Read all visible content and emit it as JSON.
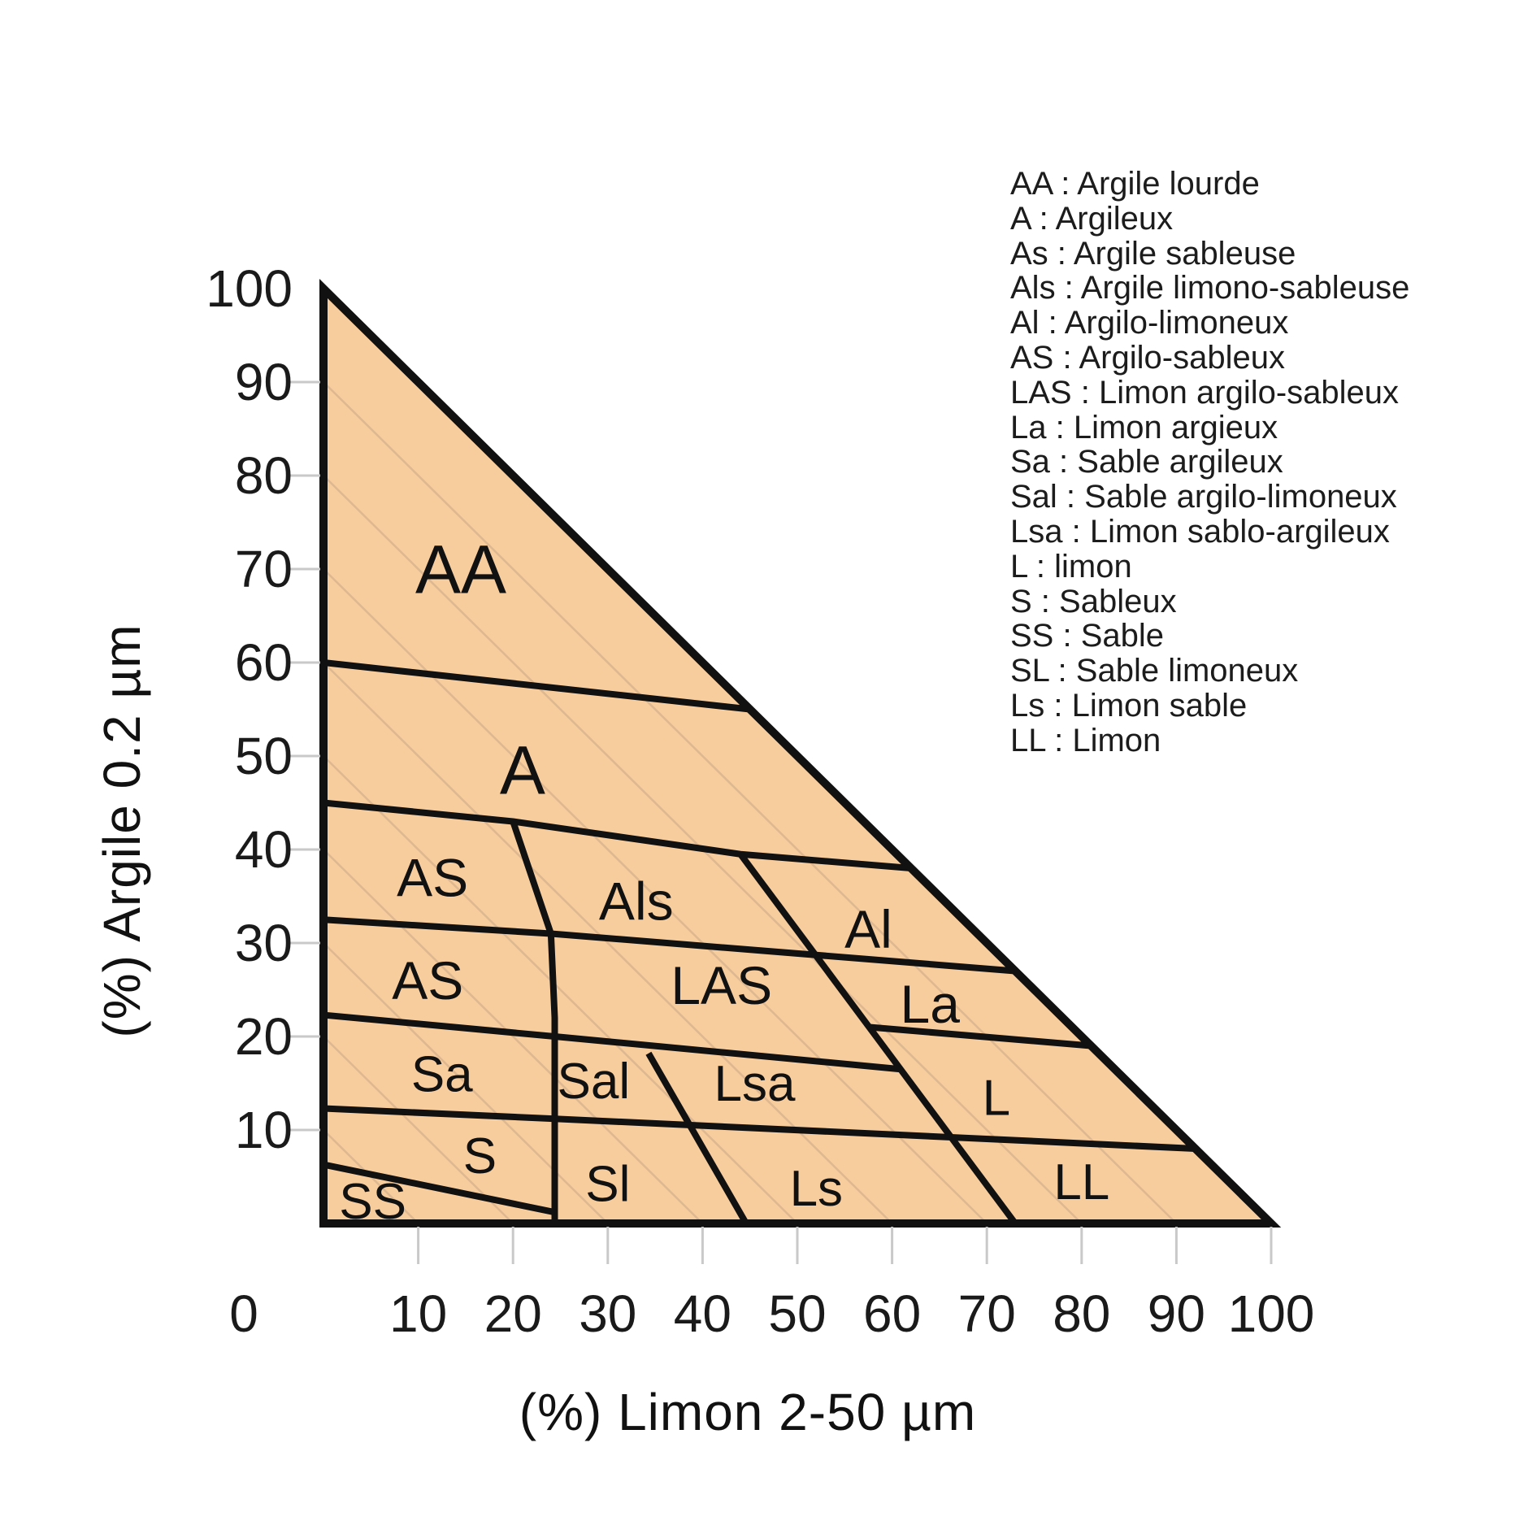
{
  "colors": {
    "region_fill": "#F8CD9E",
    "hatch": "#D9B58E",
    "line": "#111111",
    "tick": "#C9C9C9",
    "text": "#1A1A1A",
    "background": "#FFFFFF"
  },
  "legend": {
    "items": [
      {
        "code": "AA",
        "label": "Argile lourde"
      },
      {
        "code": "A",
        "label": "Argileux"
      },
      {
        "code": "As",
        "label": "Argile sableuse"
      },
      {
        "code": "Als",
        "label": "Argile limono-sableuse"
      },
      {
        "code": "Al",
        "label": "Argilo-limoneux"
      },
      {
        "code": "AS",
        "label": "Argilo-sableux"
      },
      {
        "code": "LAS",
        "label": "Limon argilo-sableux"
      },
      {
        "code": "La",
        "label": "Limon argieux"
      },
      {
        "code": "Sa",
        "label": "Sable argileux"
      },
      {
        "code": "Sal",
        "label": "Sable argilo-limoneux"
      },
      {
        "code": "Lsa",
        "label": "Limon sablo-argileux"
      },
      {
        "code": "L",
        "label": "limon"
      },
      {
        "code": "S",
        "label": "Sableux"
      },
      {
        "code": "SS",
        "label": "Sable"
      },
      {
        "code": "SL",
        "label": "Sable limoneux"
      },
      {
        "code": "Ls",
        "label": "Limon sable"
      },
      {
        "code": "LL",
        "label": "Limon"
      }
    ]
  },
  "chart_data": {
    "type": "area",
    "subtype": "soil-texture-triangle",
    "title": "",
    "xlabel": "(%) Limon 2-50 µm",
    "ylabel": "(%) Argile 0.2 µm",
    "xlim": [
      0,
      100
    ],
    "ylim": [
      0,
      100
    ],
    "grid": false,
    "legend_position": "right",
    "triangle_vertices": [
      [
        0,
        0
      ],
      [
        0,
        100
      ],
      [
        100,
        0
      ]
    ],
    "hatch_lines_sum_values": [
      10,
      20,
      30,
      40,
      50,
      60,
      70,
      80,
      90
    ],
    "x_axis": {
      "labels": [
        0,
        10,
        20,
        30,
        40,
        50,
        60,
        70,
        80,
        90,
        100
      ],
      "tick_values": [
        10,
        20,
        30,
        40,
        50,
        60,
        70,
        80,
        90,
        100
      ]
    },
    "y_axis": {
      "labels": [
        100,
        90,
        80,
        70,
        60,
        50,
        40,
        30,
        20,
        10
      ],
      "tick_values": [
        90,
        80,
        70,
        60,
        50,
        40,
        30,
        20,
        10
      ]
    },
    "boundaries": [
      {
        "name": "AA-A",
        "points": [
          [
            0,
            60
          ],
          [
            45,
            55
          ]
        ]
      },
      {
        "name": "A-bottom-Al-top",
        "points": [
          [
            0,
            45
          ],
          [
            20,
            43
          ],
          [
            44,
            39.5
          ],
          [
            62,
            38
          ]
        ]
      },
      {
        "name": "AS-right-column",
        "points": [
          [
            20,
            43
          ],
          [
            24,
            31
          ],
          [
            24.4,
            22
          ],
          [
            24.4,
            0
          ]
        ]
      },
      {
        "name": "AS-AS-split",
        "points": [
          [
            0,
            32.5
          ],
          [
            24,
            31
          ]
        ]
      },
      {
        "name": "Als-LAS-La-top",
        "points": [
          [
            24,
            31
          ],
          [
            73,
            27
          ]
        ]
      },
      {
        "name": "steep-diagonal",
        "points": [
          [
            44,
            39.5
          ],
          [
            73,
            0
          ]
        ]
      },
      {
        "name": "Sa-top-LAS-bottom",
        "points": [
          [
            0,
            22.3
          ],
          [
            24.4,
            20
          ],
          [
            60.9,
            16.5
          ]
        ]
      },
      {
        "name": "La-L-split",
        "points": [
          [
            57.6,
            21
          ],
          [
            81,
            19
          ]
        ]
      },
      {
        "name": "Sa-S-row-line",
        "points": [
          [
            0,
            12.3
          ],
          [
            24.4,
            11.2
          ],
          [
            92,
            8
          ]
        ]
      },
      {
        "name": "Sal-Sl-diagonal",
        "points": [
          [
            34.3,
            18.2
          ],
          [
            44.6,
            0
          ]
        ]
      },
      {
        "name": "SS-top",
        "points": [
          [
            0,
            6.3
          ],
          [
            24.4,
            1.2
          ]
        ]
      }
    ],
    "regions": [
      {
        "code": "AA",
        "x": 14.5,
        "y": 70,
        "size": 84
      },
      {
        "code": "A",
        "x": 21,
        "y": 48.5,
        "size": 84
      },
      {
        "code": "AS",
        "x": 11.5,
        "y": 37,
        "size": 66
      },
      {
        "code": "Als",
        "x": 33,
        "y": 34.5,
        "size": 66
      },
      {
        "code": "Al",
        "x": 57.5,
        "y": 31.5,
        "size": 66
      },
      {
        "code": "AS",
        "x": 11,
        "y": 26,
        "size": 66
      },
      {
        "code": "LAS",
        "x": 42,
        "y": 25.5,
        "size": 66
      },
      {
        "code": "La",
        "x": 64,
        "y": 23.5,
        "size": 66
      },
      {
        "code": "Sa",
        "x": 12.5,
        "y": 16,
        "size": 62
      },
      {
        "code": "Sal",
        "x": 28.5,
        "y": 15.3,
        "size": 62
      },
      {
        "code": "Lsa",
        "x": 45.5,
        "y": 15,
        "size": 62
      },
      {
        "code": "L",
        "x": 71,
        "y": 13.5,
        "size": 62
      },
      {
        "code": "S",
        "x": 16.5,
        "y": 7.3,
        "size": 62
      },
      {
        "code": "SS",
        "x": 5.2,
        "y": 2.4,
        "size": 62
      },
      {
        "code": "Sl",
        "x": 30,
        "y": 4.3,
        "size": 62
      },
      {
        "code": "Ls",
        "x": 52,
        "y": 3.8,
        "size": 62
      },
      {
        "code": "LL",
        "x": 80,
        "y": 4.5,
        "size": 62
      }
    ]
  }
}
